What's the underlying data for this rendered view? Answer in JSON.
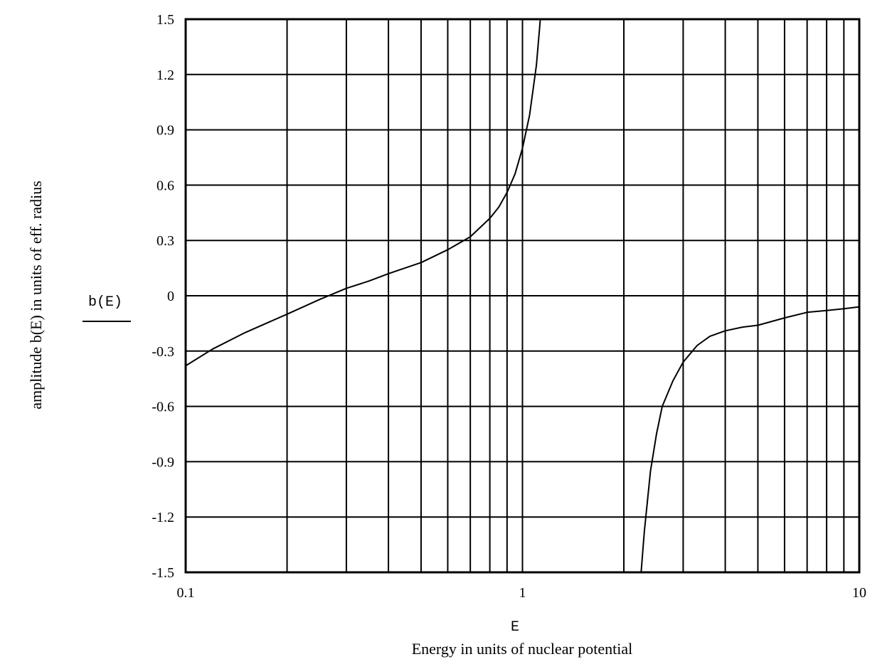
{
  "chart_data": {
    "type": "line",
    "x_scale": "log",
    "y_scale": "linear",
    "xlim": [
      0.1,
      10
    ],
    "ylim": [
      -1.5,
      1.5
    ],
    "grid": true,
    "x_tick_labels": [
      "0.1",
      "1",
      "10"
    ],
    "y_ticks": [
      1.5,
      1.2,
      0.9,
      0.6,
      0.3,
      0,
      -0.3,
      -0.6,
      -0.9,
      -1.2,
      -1.5
    ],
    "y_tick_labels": [
      "1.5",
      "1.2",
      "0.9",
      "0.6",
      "0.3",
      "0",
      "-0.3",
      "-0.6",
      "-0.9",
      "-1.2",
      "-1.5"
    ],
    "xlabel_var": "E",
    "xlabel": "Energy in units of nuclear potential",
    "ylabel_var": "b(E)",
    "ylabel": "amplitude b(E) in units of eff. radius",
    "series": [
      {
        "segments": [
          [
            [
              0.1,
              -0.38
            ],
            [
              0.12,
              -0.29
            ],
            [
              0.15,
              -0.2
            ],
            [
              0.2,
              -0.1
            ],
            [
              0.25,
              -0.02
            ],
            [
              0.3,
              0.04
            ],
            [
              0.35,
              0.08
            ],
            [
              0.4,
              0.12
            ],
            [
              0.5,
              0.18
            ],
            [
              0.6,
              0.25
            ],
            [
              0.7,
              0.32
            ],
            [
              0.8,
              0.42
            ],
            [
              0.85,
              0.48
            ],
            [
              0.9,
              0.56
            ],
            [
              0.95,
              0.66
            ],
            [
              1.0,
              0.8
            ],
            [
              1.05,
              0.98
            ],
            [
              1.1,
              1.25
            ],
            [
              1.13,
              1.5
            ]
          ],
          [
            [
              2.25,
              -1.5
            ],
            [
              2.3,
              -1.28
            ],
            [
              2.4,
              -0.95
            ],
            [
              2.5,
              -0.75
            ],
            [
              2.6,
              -0.6
            ],
            [
              2.8,
              -0.46
            ],
            [
              3.0,
              -0.36
            ],
            [
              3.3,
              -0.27
            ],
            [
              3.6,
              -0.22
            ],
            [
              4.0,
              -0.19
            ],
            [
              4.5,
              -0.17
            ],
            [
              5.0,
              -0.16
            ],
            [
              6.0,
              -0.12
            ],
            [
              7.0,
              -0.09
            ],
            [
              8.0,
              -0.08
            ],
            [
              9.0,
              -0.07
            ],
            [
              10.0,
              -0.06
            ]
          ]
        ]
      }
    ]
  }
}
